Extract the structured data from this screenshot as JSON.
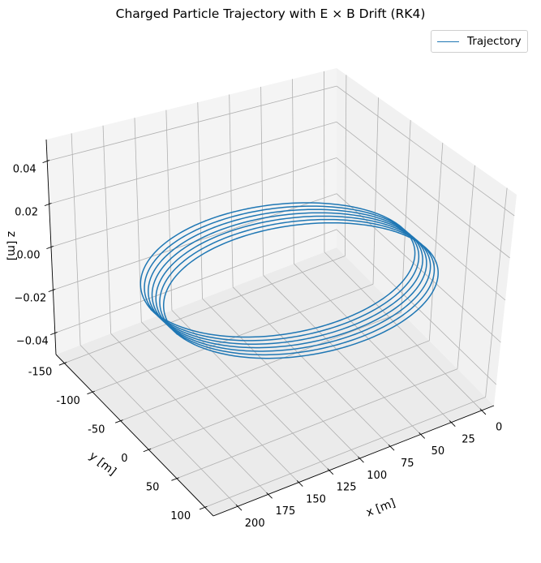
{
  "chart_data": {
    "type": "line",
    "projection": "3d",
    "title": "Charged Particle Trajectory with E × B Drift (RK4)",
    "xlabel": "x [m]",
    "ylabel": "y [m]",
    "zlabel": "z [m]",
    "x_ticks": [
      0,
      25,
      50,
      75,
      100,
      125,
      150,
      175,
      200
    ],
    "y_ticks": [
      -150,
      -100,
      -50,
      0,
      50,
      100
    ],
    "z_ticks": [
      -0.04,
      -0.02,
      0.0,
      0.02,
      0.04
    ],
    "z_tick_labels": [
      "−0.04",
      "−0.02",
      "0.00",
      "0.02",
      "0.04"
    ],
    "xlim": [
      -10,
      220
    ],
    "ylim": [
      -165,
      115
    ],
    "zlim": [
      -0.05,
      0.05
    ],
    "grid": true,
    "legend_position": "upper right",
    "series": [
      {
        "name": "Trajectory",
        "color": "#1f77b4",
        "shape": "circular gyration in x–y plane at z = 0 with steady drift along y (E × B)",
        "center_x": 100,
        "radius": 100,
        "turns": 7,
        "y_center_start": -40,
        "y_center_end": 5,
        "z": 0
      }
    ]
  }
}
